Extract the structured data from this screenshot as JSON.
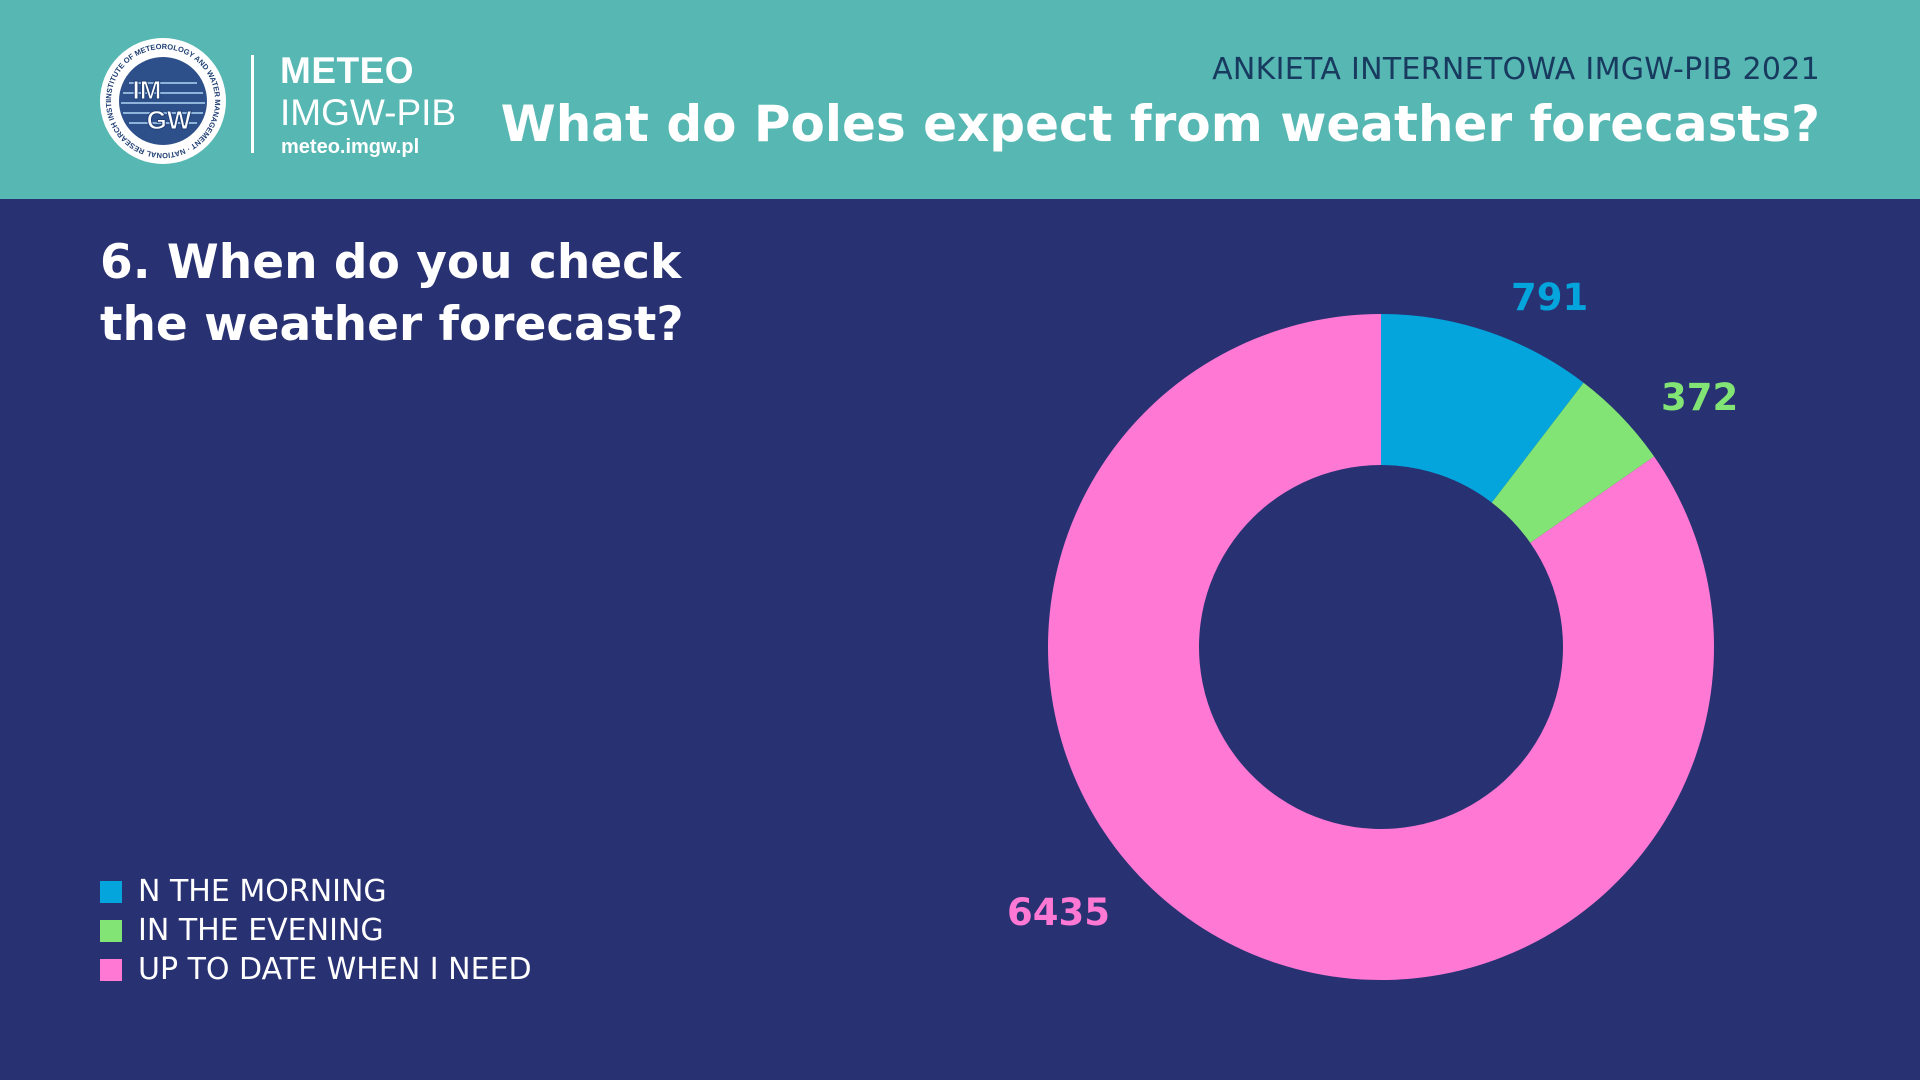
{
  "header": {
    "logo_top_text": "IM",
    "logo_bottom_text": "GW",
    "logo_ring_text": "INSTITUTE OF METEOROLOGY AND WATER MANAGEMENT · NATIONAL RESEARCH INSTITUTE ·",
    "brand_line1": "METEO",
    "brand_line2": "IMGW-PIB",
    "brand_url": "meteo.imgw.pl",
    "survey_label": "ANKIETA INTERNETOWA IMGW-PIB 2021",
    "title": "What do Poles expect from weather forecasts?"
  },
  "question": {
    "line1": "6. When do you check",
    "line2": "the weather forecast?"
  },
  "colors": {
    "background": "#283172",
    "header": "#56b7b3",
    "morning": "#04a4dc",
    "evening": "#82e474",
    "when_needed": "#fe78d4"
  },
  "chart_data": {
    "type": "pie",
    "categories": [
      "N THE MORNING",
      "IN THE EVENING",
      "UP TO DATE WHEN I NEED"
    ],
    "values": [
      791,
      372,
      6435
    ],
    "value_labels": [
      "791",
      "372",
      "6435"
    ],
    "colors": [
      "#04a4dc",
      "#82e474",
      "#fe78d4"
    ],
    "donut": true,
    "legend_position": "bottom-left"
  }
}
